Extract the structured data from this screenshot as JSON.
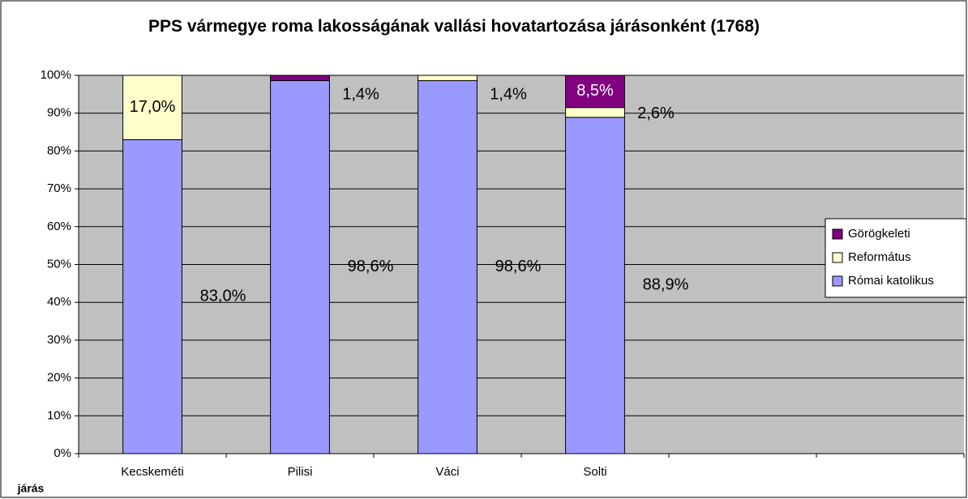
{
  "chart_data": {
    "type": "stacked_bar",
    "title": "PPS vármegye roma lakosságának vallási hovatartozása járásonként (1768)",
    "x_label": "járás",
    "categories": [
      "Kecskeméti",
      "Pilisi",
      "Váci",
      "Solti",
      null,
      null
    ],
    "series": [
      {
        "name": "Római katolikus",
        "color": "#9999ff",
        "values": [
          83.0,
          98.6,
          98.6,
          88.9,
          null,
          null
        ],
        "value_labels": [
          "83,0%",
          "98,6%",
          "98,6%",
          "88,9%",
          null,
          null
        ]
      },
      {
        "name": "Református",
        "color": "#ffffcc",
        "values": [
          17.0,
          0,
          1.4,
          2.6,
          null,
          null
        ],
        "value_labels": [
          "17,0%",
          null,
          "1,4%",
          "2,6%",
          null,
          null
        ]
      },
      {
        "name": "Görögkeleti",
        "color": "#800080",
        "values": [
          0,
          1.4,
          0,
          8.5,
          null,
          null
        ],
        "value_labels": [
          null,
          "1,4%",
          null,
          "8,5%",
          null,
          null
        ]
      }
    ],
    "ylim": [
      0,
      100
    ],
    "yticks": [
      {
        "value": 0,
        "label": "0%"
      },
      {
        "value": 10,
        "label": "10%"
      },
      {
        "value": 20,
        "label": "20%"
      },
      {
        "value": 30,
        "label": "30%"
      },
      {
        "value": 40,
        "label": "40%"
      },
      {
        "value": 50,
        "label": "50%"
      },
      {
        "value": 60,
        "label": "60%"
      },
      {
        "value": 70,
        "label": "70%"
      },
      {
        "value": 80,
        "label": "80%"
      },
      {
        "value": 90,
        "label": "90%"
      },
      {
        "value": 100,
        "label": "100%"
      }
    ],
    "grid": true,
    "legend": "right"
  }
}
